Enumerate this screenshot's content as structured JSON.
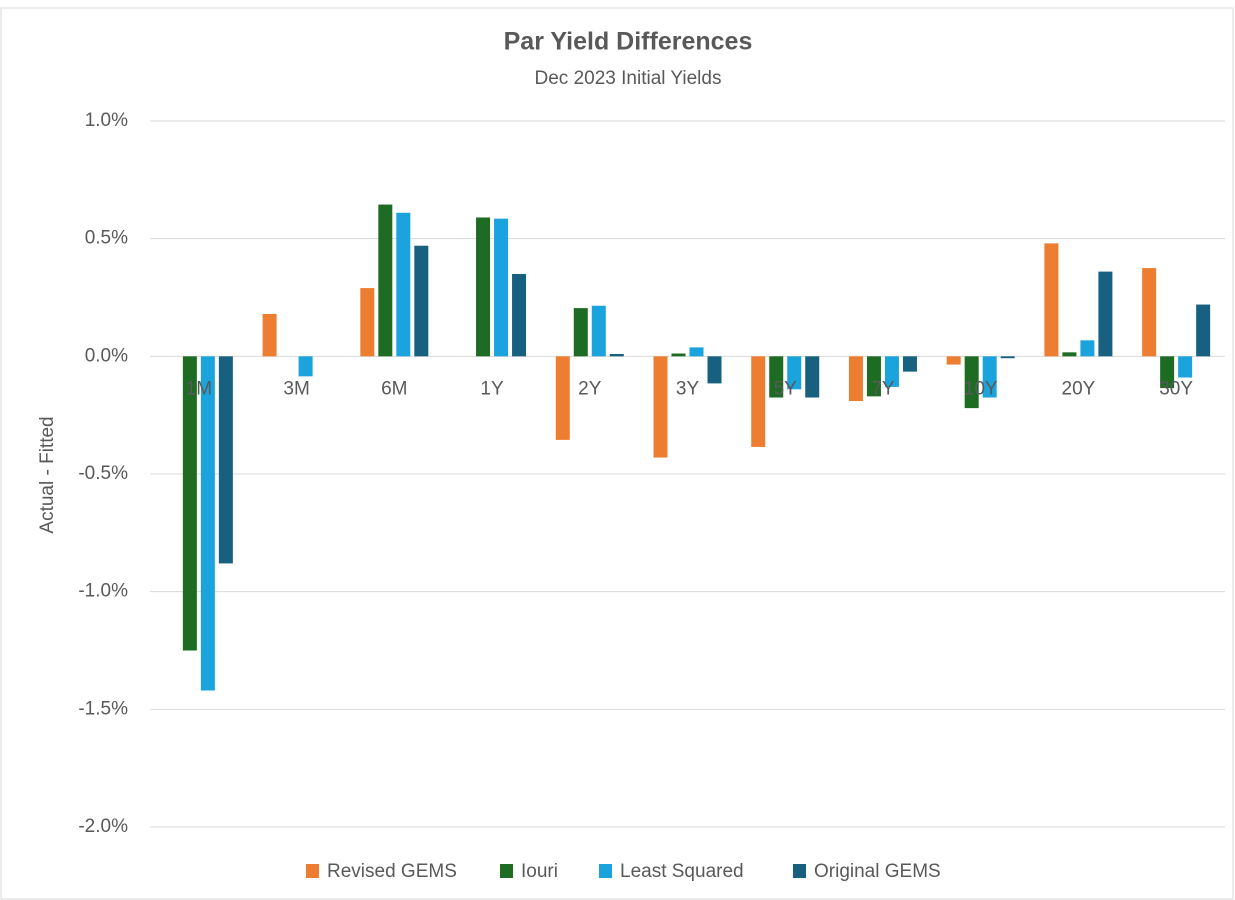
{
  "chart_data": {
    "type": "bar",
    "title": "Par Yield Differences",
    "subtitle": "Dec 2023 Initial Yields",
    "y_label": "Actual - Fitted",
    "categories": [
      "1M",
      "3M",
      "6M",
      "1Y",
      "2Y",
      "3Y",
      "5Y",
      "7Y",
      "10Y",
      "20Y",
      "30Y"
    ],
    "series": [
      {
        "name": "Revised GEMS",
        "color": "#ED7D31",
        "values": [
          0,
          0.18,
          0.29,
          0,
          -0.355,
          -0.43,
          -0.385,
          -0.19,
          -0.035,
          0.48,
          0.375
        ]
      },
      {
        "name": "Iouri",
        "color": "#1E6B24",
        "values": [
          -1.25,
          0,
          0.645,
          0.59,
          0.205,
          0.012,
          -0.175,
          -0.17,
          -0.22,
          0.017,
          -0.135
        ]
      },
      {
        "name": "Least Squared",
        "color": "#1AA3DC",
        "values": [
          -1.42,
          -0.085,
          0.61,
          0.585,
          0.215,
          0.038,
          -0.14,
          -0.13,
          -0.175,
          0.068,
          -0.09
        ]
      },
      {
        "name": "Original GEMS",
        "color": "#17607F",
        "values": [
          -0.88,
          0,
          0.47,
          0.35,
          0.01,
          -0.115,
          -0.175,
          -0.065,
          -0.008,
          0.36,
          0.22
        ]
      }
    ],
    "ylim": [
      -2.0,
      1.0
    ],
    "yticks": [
      {
        "value": 1.0,
        "label": "1.0%"
      },
      {
        "value": 0.5,
        "label": "0.5%"
      },
      {
        "value": 0.0,
        "label": "0.0%"
      },
      {
        "value": -0.5,
        "label": "-0.5%"
      },
      {
        "value": -1.0,
        "label": "-1.0%"
      },
      {
        "value": -1.5,
        "label": "-1.5%"
      },
      {
        "value": -2.0,
        "label": "-2.0%"
      }
    ],
    "grid": true,
    "legend": "bottom"
  }
}
